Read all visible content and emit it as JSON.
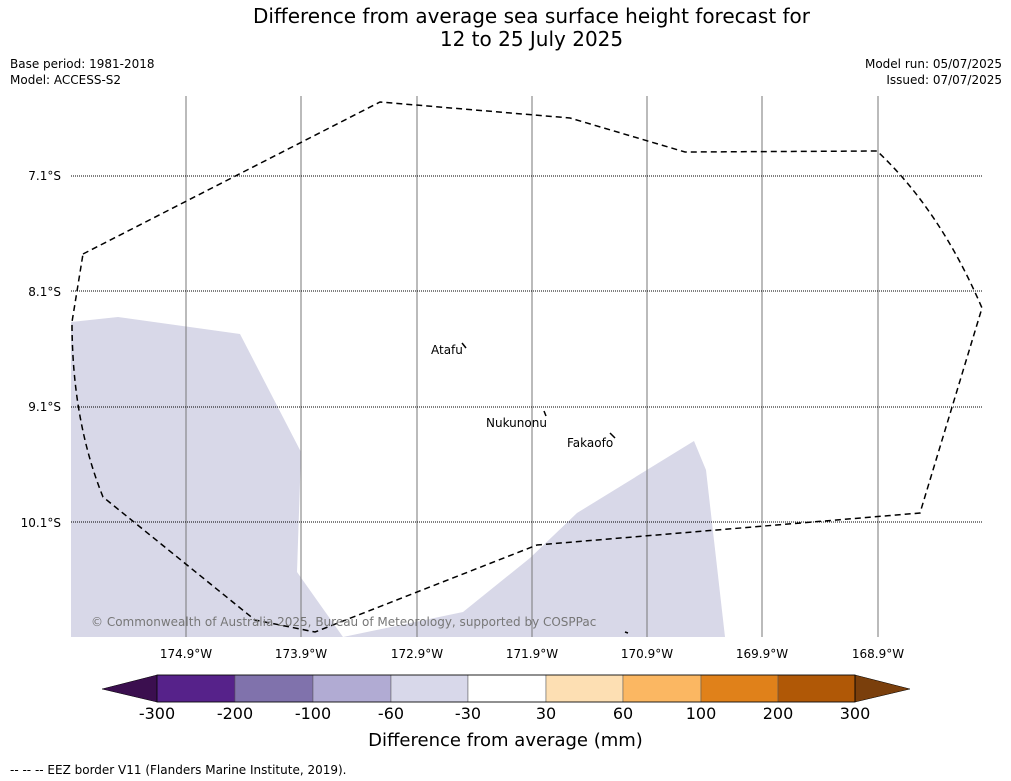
{
  "title_line1": "Difference from average sea surface height forecast for",
  "title_line2": "12 to 25 July 2025",
  "meta": {
    "base_period": "Base period: 1981-2018",
    "model": "Model: ACCESS-S2",
    "model_run": "Model run: 05/07/2025",
    "issued": "Issued: 07/07/2025"
  },
  "map": {
    "lat_labels": [
      "7.1°S",
      "8.1°S",
      "9.1°S",
      "10.1°S"
    ],
    "lon_labels": [
      "174.9°W",
      "173.9°W",
      "172.9°W",
      "171.9°W",
      "170.9°W",
      "169.9°W",
      "168.9°W"
    ],
    "places": [
      "Atafu",
      "Nukunonu",
      "Fakaofo"
    ],
    "copyright": "© Commonwealth of Australia 2025, Bureau of Meteorology, supported by COSPPac",
    "shading_color": "#d8d8e8",
    "eez_color": "#000000"
  },
  "colorbar": {
    "title": "Difference from average (mm)",
    "tick_labels": [
      "-300",
      "-200",
      "-100",
      "-60",
      "-30",
      "30",
      "60",
      "100",
      "200",
      "300"
    ],
    "colors": [
      "#3b0f4f",
      "#56228a",
      "#8072ac",
      "#b1abd3",
      "#d8d8ea",
      "#ffffff",
      "#fddfb3",
      "#fbb762",
      "#e0811a",
      "#b05806",
      "#7a3f0c"
    ]
  },
  "legend_text": "--  --  -- EEZ border V11 (Flanders Marine Institute, 2019)."
}
